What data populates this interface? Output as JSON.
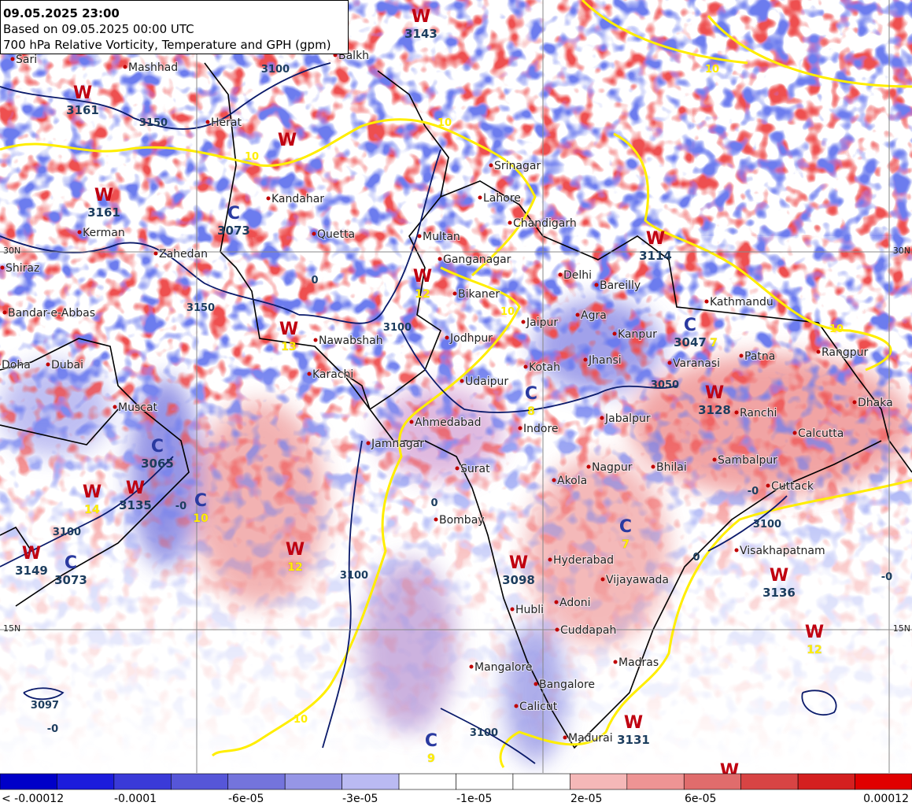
{
  "header": {
    "lines": [
      "09.05.2025 23:00",
      "Based on 09.05.2025 00:00 UTC",
      "700 hPa Relative Vorticity, Temperature and GPH (gpm)"
    ]
  },
  "lat_labels": [
    "30N",
    "15N",
    "30N",
    "15N"
  ],
  "cities": [
    "Sari",
    "Mashhad",
    "Balkh",
    "Herat",
    "Kandahar",
    "Quetta",
    "Multan",
    "Lahore",
    "Srinagar",
    "Chandigarh",
    "Ganganagar",
    "Delhi",
    "Bareilly",
    "Bikaner",
    "Jaipur",
    "Agra",
    "Kanpur",
    "Kathmandu",
    "Jodhpur",
    "Jhansi",
    "Varanasi",
    "Patna",
    "Rangpur",
    "Nawabshah",
    "Karachi",
    "Kotah",
    "Udaipur",
    "Dhaka",
    "Ahmedabad",
    "Indore",
    "Jabalpur",
    "Ranchi",
    "Calcutta",
    "Jamnagar",
    "Surat",
    "Nagpur",
    "Bhilai",
    "Sambalpur",
    "Akola",
    "Cuttack",
    "Bombay",
    "Hyderabad",
    "Visakhapatnam",
    "Vijayawada",
    "Adoni",
    "Hubli",
    "Cuddapah",
    "Madras",
    "Mangalore",
    "Bangalore",
    "Calicut",
    "Madurai",
    "Muscat",
    "Dubai",
    "Doha",
    "Bandar-e-Abbas",
    "Shiraz",
    "Kerman",
    "Zahedan"
  ],
  "centers": [
    {
      "letter": "W",
      "value": 3161
    },
    {
      "letter": "W",
      "value": 3143
    },
    {
      "letter": "W"
    },
    {
      "letter": "W",
      "value": 3161
    },
    {
      "letter": "C",
      "value": 3073
    },
    {
      "letter": "W",
      "temp": 12
    },
    {
      "letter": "W",
      "temp": 13
    },
    {
      "letter": "W",
      "value": 3114
    },
    {
      "letter": "C",
      "value": 3047,
      "temp": 7
    },
    {
      "letter": "W",
      "value": 3128
    },
    {
      "letter": "C",
      "temp": 8
    },
    {
      "letter": "C",
      "value": 3065
    },
    {
      "letter": "W",
      "value": 3135
    },
    {
      "letter": "W",
      "temp": 14
    },
    {
      "letter": "C",
      "temp": 10
    },
    {
      "letter": "W",
      "temp": 12
    },
    {
      "letter": "W",
      "value": 3149
    },
    {
      "letter": "C",
      "value": 3073
    },
    {
      "letter": "W",
      "value": 3098
    },
    {
      "letter": "C",
      "temp": 7
    },
    {
      "letter": "W",
      "value": 3136
    },
    {
      "letter": "W",
      "temp": 12
    },
    {
      "letter": "C",
      "temp": 9
    },
    {
      "letter": "W",
      "value": 3131
    },
    {
      "letter": "W"
    }
  ],
  "contour_labels": [
    3100,
    3150,
    3150,
    3100,
    3050,
    3100,
    3100,
    3100,
    3100,
    3097,
    10,
    10,
    10,
    10,
    10,
    10,
    "-0",
    "-0",
    "-0",
    "-0",
    0,
    0,
    0
  ],
  "colorbar": {
    "labels": [
      "< -0.00012",
      "-0.0001",
      "-6e-05",
      "-3e-05",
      "-1e-05",
      "2e-05",
      "6e-05",
      "0.00012"
    ],
    "colors": [
      "#0000c8",
      "#1c1cdc",
      "#3a3ad8",
      "#5656d8",
      "#7474dc",
      "#9696e6",
      "#babaf2",
      "#ffffff",
      "#ffffff",
      "#ffffff",
      "#f5b8b8",
      "#ee9494",
      "#e06c6c",
      "#d84444",
      "#d42020",
      "#e00000"
    ]
  }
}
